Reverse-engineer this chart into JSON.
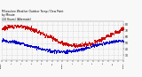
{
  "title_line1": "Milwaukee Weather Outdoor Temp / Dew Point",
  "title_line2": "by Minute",
  "title_line3": "(24 Hours) (Alternate)",
  "bg_color": "#f8f8f8",
  "grid_color": "#bbbbbb",
  "temp_color": "#cc0000",
  "dew_color": "#0000cc",
  "ylim": [
    22,
    85
  ],
  "yticks": [
    30,
    40,
    50,
    60,
    70,
    80
  ],
  "n_points": 1440,
  "temp_peak": 78,
  "temp_min": 46,
  "temp_noise_scale": 3.5,
  "dew_peak": 54,
  "dew_min": 36,
  "dew_noise_scale": 2.5,
  "hours": [
    "12am",
    "1",
    "2",
    "3",
    "4",
    "5",
    "6",
    "7",
    "8",
    "9",
    "10",
    "11",
    "12pm",
    "1",
    "2",
    "3",
    "4",
    "5",
    "6",
    "7",
    "8",
    "9",
    "10",
    "11",
    "12am"
  ]
}
